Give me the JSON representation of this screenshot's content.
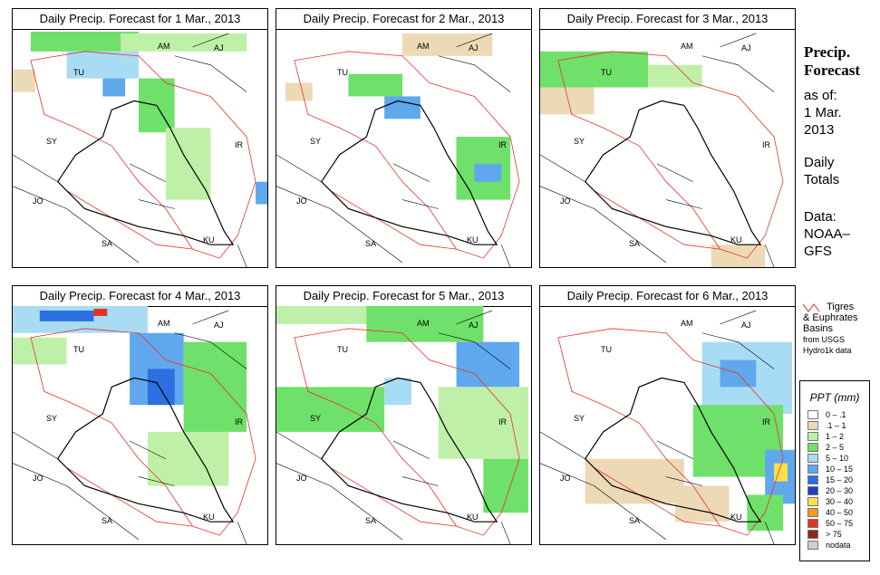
{
  "panels": [
    {
      "title": "Daily Precip. Forecast for  1 Mar., 2013"
    },
    {
      "title": "Daily Precip. Forecast for  2 Mar., 2013"
    },
    {
      "title": "Daily Precip. Forecast for  3 Mar., 2013"
    },
    {
      "title": "Daily Precip. Forecast for  4 Mar., 2013"
    },
    {
      "title": "Daily Precip. Forecast for  5 Mar., 2013"
    },
    {
      "title": "Daily Precip. Forecast for  6 Mar., 2013"
    }
  ],
  "map_labels": {
    "am": "AM",
    "aj": "AJ",
    "tu": "TU",
    "sy": "SY",
    "ir": "IR",
    "jo": "JO",
    "sa": "SA",
    "ku": "KU"
  },
  "sidebar": {
    "title_line1": "Precip.",
    "title_line2": "Forecast",
    "asof": "as of:",
    "date_line1": "1 Mar.",
    "date_line2": "2013",
    "daily_line1": "Daily",
    "daily_line2": "Totals",
    "data_line1": "Data:",
    "data_line2": "NOAA–",
    "data_line3": "GFS"
  },
  "basin_legend": {
    "line1": "Tigres",
    "line2": "& Euphrates",
    "line3": "Basins",
    "line4": "from USGS",
    "line5": "Hydro1k data",
    "color": "#e8322a"
  },
  "legend": {
    "title": "PPT (mm)",
    "classes": [
      {
        "label": "0 – .1",
        "color": "#ffffff"
      },
      {
        "label": ".1 – 1",
        "color": "#ecd9b6"
      },
      {
        "label": "1 – 2",
        "color": "#bff0a8"
      },
      {
        "label": "2 – 5",
        "color": "#6fe06a"
      },
      {
        "label": "5 – 10",
        "color": "#a8dcf4"
      },
      {
        "label": "10 – 15",
        "color": "#5fa8ee"
      },
      {
        "label": "15 – 20",
        "color": "#2c6fe0"
      },
      {
        "label": "20 – 30",
        "color": "#1f3fc4"
      },
      {
        "label": "30 – 40",
        "color": "#ffe04a"
      },
      {
        "label": "40 – 50",
        "color": "#ff9a1a"
      },
      {
        "label": "50 – 75",
        "color": "#e8321e"
      },
      {
        "label": "> 75",
        "color": "#8a2a1a"
      },
      {
        "label": "nodata",
        "color": "#cfcfcf"
      }
    ]
  }
}
